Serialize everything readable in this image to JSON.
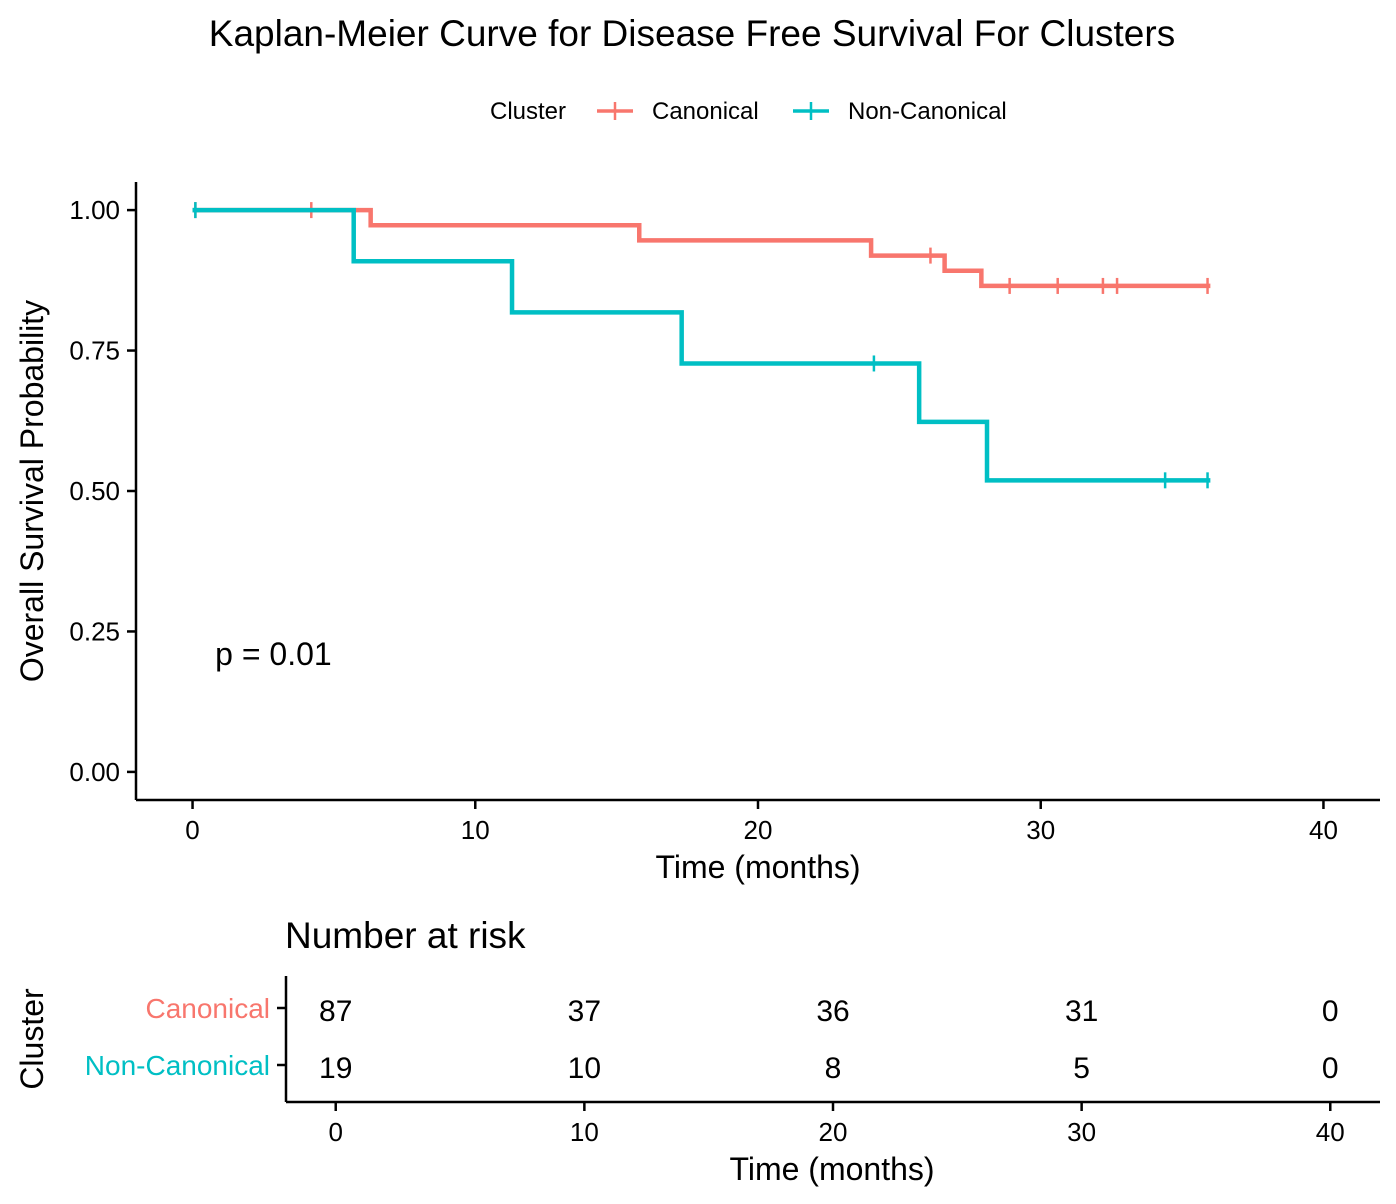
{
  "chart_data": {
    "type": "line",
    "title": "Kaplan-Meier Curve for Disease Free Survival For Clusters",
    "legend": {
      "title": "Cluster",
      "placement": "top"
    },
    "xlabel": "Time (months)",
    "ylabel": "Overall Survival Probability",
    "xlim": [
      -2,
      42
    ],
    "ylim": [
      -0.05,
      1.05
    ],
    "xticks": [
      0,
      10,
      20,
      30,
      40
    ],
    "xtick_labels": [
      "0",
      "10",
      "20",
      "30",
      "40"
    ],
    "yticks": [
      0,
      0.25,
      0.5,
      0.75,
      1.0
    ],
    "ytick_labels": [
      "0.00",
      "0.25",
      "0.50",
      "0.75",
      "1.00"
    ],
    "grid": false,
    "annotation": "p = 0.01",
    "annotation_pos": [
      0.8,
      0.19
    ],
    "series": [
      {
        "name": "Canonical",
        "color": "#F8766D",
        "steps": [
          [
            0,
            1.0
          ],
          [
            6.3,
            0.973
          ],
          [
            15.8,
            0.946
          ],
          [
            24.0,
            0.919
          ],
          [
            26.6,
            0.892
          ],
          [
            27.9,
            0.865
          ],
          [
            36.0,
            0.865
          ]
        ],
        "censors": [
          [
            0.1,
            1.0
          ],
          [
            4.2,
            1.0
          ],
          [
            26.1,
            0.919
          ],
          [
            28.9,
            0.865
          ],
          [
            30.6,
            0.865
          ],
          [
            32.2,
            0.865
          ],
          [
            32.7,
            0.865
          ],
          [
            35.9,
            0.865
          ]
        ]
      },
      {
        "name": "Non-Canonical",
        "color": "#00BFC4",
        "steps": [
          [
            0,
            1.0
          ],
          [
            5.7,
            0.909
          ],
          [
            11.3,
            0.818
          ],
          [
            17.3,
            0.727
          ],
          [
            25.7,
            0.623
          ],
          [
            28.1,
            0.519
          ],
          [
            36.0,
            0.519
          ]
        ],
        "censors": [
          [
            0.1,
            1.0
          ],
          [
            24.1,
            0.727
          ],
          [
            34.4,
            0.519
          ],
          [
            35.9,
            0.519
          ]
        ]
      }
    ]
  },
  "risk_table": {
    "title": "Number at risk",
    "ylabel": "Cluster",
    "xlabel": "Time (months)",
    "times": [
      0,
      10,
      20,
      30,
      40
    ],
    "time_labels": [
      "0",
      "10",
      "20",
      "30",
      "40"
    ],
    "xlim": [
      -2,
      42
    ],
    "rows": [
      {
        "name": "Canonical",
        "color": "#F8766D",
        "counts": [
          "87",
          "37",
          "36",
          "31",
          "0"
        ]
      },
      {
        "name": "Non-Canonical",
        "color": "#00BFC4",
        "counts": [
          "19",
          "10",
          "8",
          "5",
          "0"
        ]
      }
    ]
  }
}
